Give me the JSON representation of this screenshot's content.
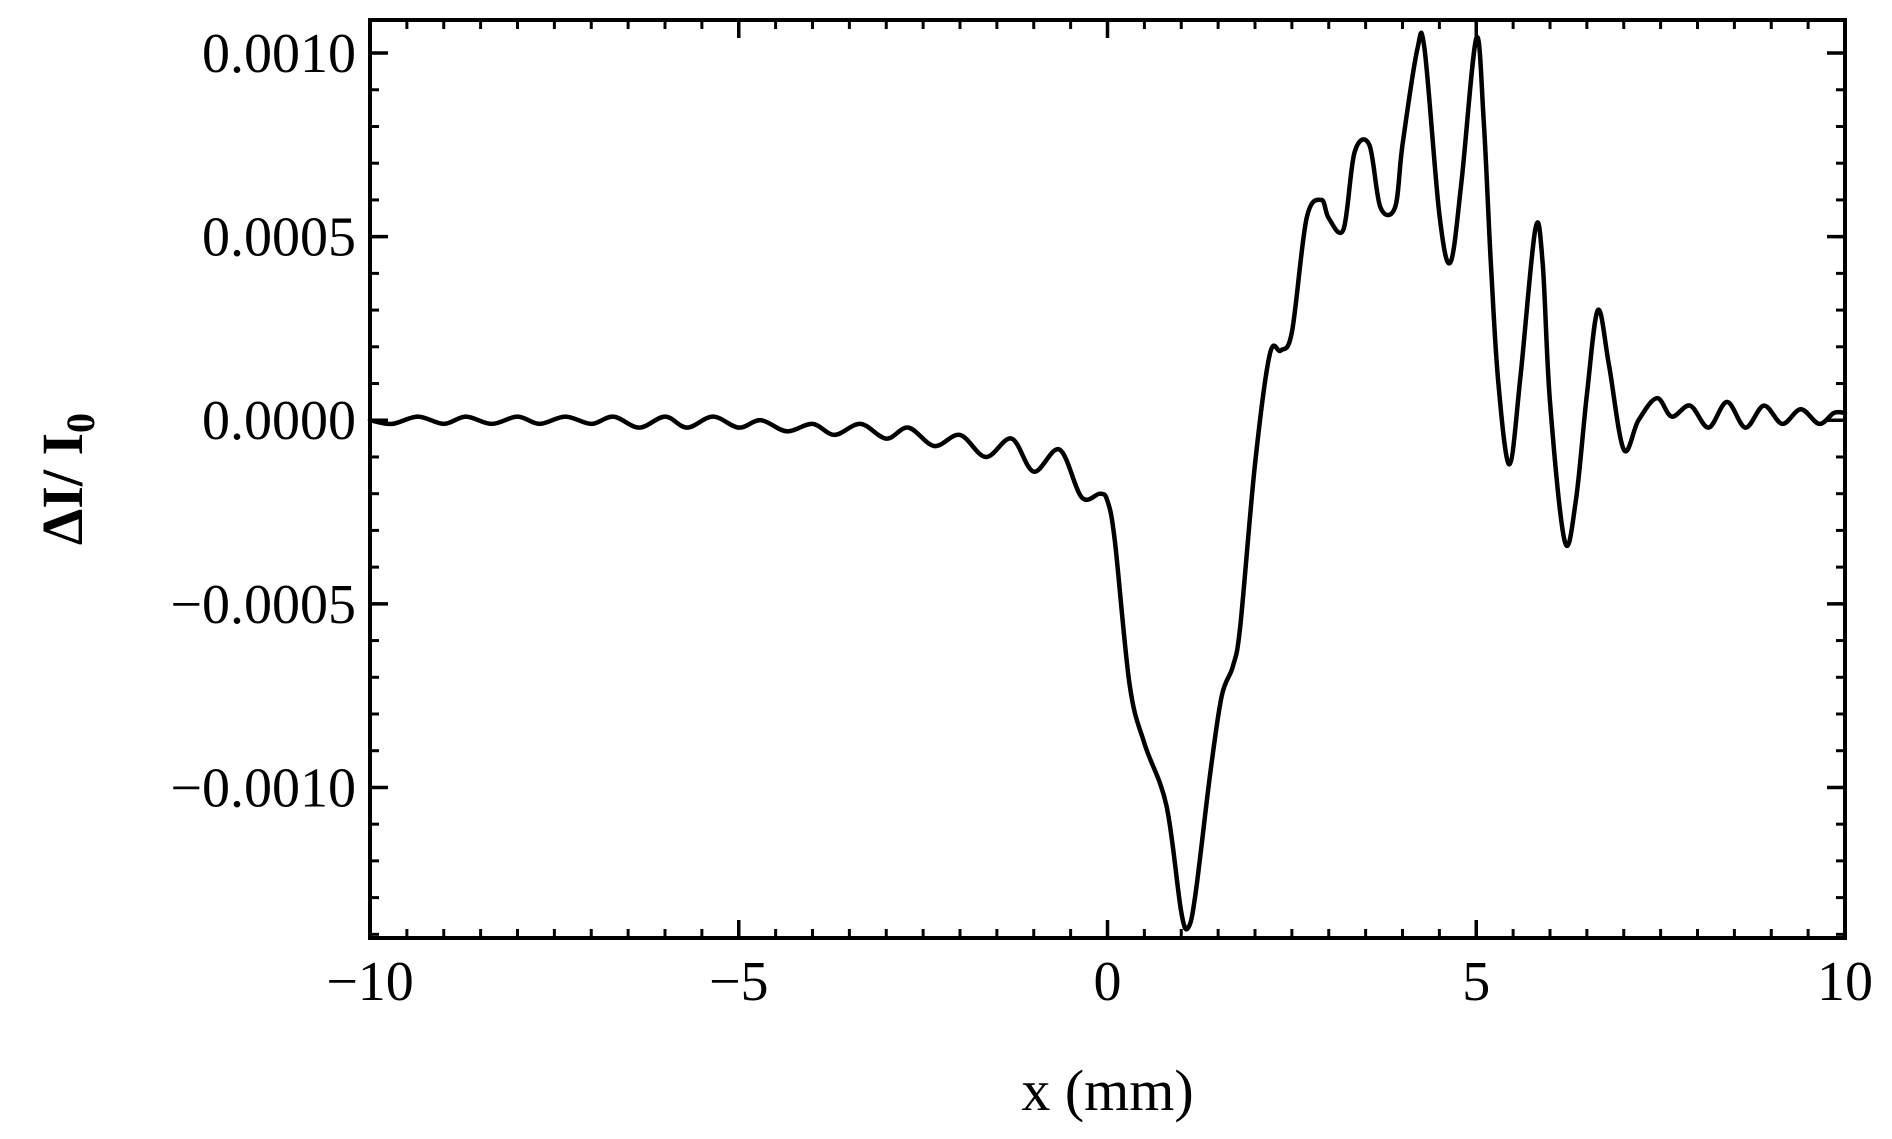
{
  "chart_data": {
    "type": "line",
    "title": "",
    "xlabel": "x (mm)",
    "ylabel": {
      "main": "ΔI/ I",
      "subscript": "0"
    },
    "xlim": [
      -10,
      10
    ],
    "ylim": [
      -0.00141,
      0.00109
    ],
    "x_ticks": [
      {
        "value": -10,
        "label": "−10"
      },
      {
        "value": -5,
        "label": "−5"
      },
      {
        "value": 0,
        "label": "0"
      },
      {
        "value": 5,
        "label": "5"
      },
      {
        "value": 10,
        "label": "10"
      }
    ],
    "y_ticks": [
      {
        "value": 0.001,
        "label": "0.0010"
      },
      {
        "value": 0.0005,
        "label": "0.0005"
      },
      {
        "value": 0.0,
        "label": "0.0000"
      },
      {
        "value": -0.0005,
        "label": "−0.0005"
      },
      {
        "value": -0.001,
        "label": "−0.0010"
      }
    ],
    "x_minor_step": 0.5,
    "y_minor_step": 0.0001,
    "grid": false,
    "line_color": "#000000",
    "series": [
      {
        "x": [
          -10.0,
          -9.7,
          -9.35,
          -9.0,
          -8.7,
          -8.35,
          -8.0,
          -7.7,
          -7.35,
          -7.0,
          -6.7,
          -6.35,
          -6.0,
          -5.7,
          -5.35,
          -5.0,
          -4.7,
          -4.35,
          -4.0,
          -3.7,
          -3.35,
          -3.0,
          -2.7,
          -2.35,
          -2.0,
          -1.65,
          -1.3,
          -1.0,
          -0.65,
          -0.35,
          -0.1,
          0.0,
          0.1,
          0.3,
          0.5,
          0.8,
          1.0,
          1.1,
          1.2,
          1.4,
          1.55,
          1.7,
          1.8,
          2.0,
          2.2,
          2.35,
          2.5,
          2.7,
          2.9,
          3.0,
          3.2,
          3.35,
          3.55,
          3.7,
          3.9,
          4.0,
          4.2,
          4.3,
          4.5,
          4.65,
          4.8,
          5.0,
          5.1,
          5.2,
          5.3,
          5.45,
          5.6,
          5.8,
          5.9,
          6.0,
          6.2,
          6.35,
          6.5,
          6.65,
          6.8,
          7.0,
          7.2,
          7.45,
          7.65,
          7.9,
          8.15,
          8.4,
          8.65,
          8.9,
          9.15,
          9.4,
          9.65,
          9.85,
          10.0
        ],
        "values": [
          0.0,
          -1e-05,
          1e-05,
          -1e-05,
          1e-05,
          -1e-05,
          1e-05,
          -1e-05,
          1e-05,
          -1e-05,
          1e-05,
          -2e-05,
          1e-05,
          -2e-05,
          1e-05,
          -2e-05,
          0.0,
          -3e-05,
          -1e-05,
          -4e-05,
          -1e-05,
          -5e-05,
          -2e-05,
          -7e-05,
          -4e-05,
          -0.0001,
          -5e-05,
          -0.00014,
          -8e-05,
          -0.00021,
          -0.0002,
          -0.00022,
          -0.00033,
          -0.00072,
          -0.00088,
          -0.00105,
          -0.00134,
          -0.00138,
          -0.00128,
          -0.00095,
          -0.00075,
          -0.00067,
          -0.00056,
          -0.00012,
          0.00018,
          0.00019,
          0.00024,
          0.00055,
          0.0006,
          0.00055,
          0.00052,
          0.00073,
          0.00075,
          0.00058,
          0.00058,
          0.00075,
          0.00101,
          0.00101,
          0.00056,
          0.00043,
          0.00065,
          0.00104,
          0.00082,
          0.00042,
          0.0001,
          -0.00012,
          0.00012,
          0.00052,
          0.00043,
          5e-05,
          -0.00033,
          -0.00022,
          7e-05,
          0.0003,
          0.00015,
          -8e-05,
          0.0,
          6e-05,
          1e-05,
          4e-05,
          -2e-05,
          5e-05,
          -2e-05,
          4e-05,
          -1e-05,
          3e-05,
          -1e-05,
          2e-05,
          2e-05
        ]
      }
    ]
  }
}
